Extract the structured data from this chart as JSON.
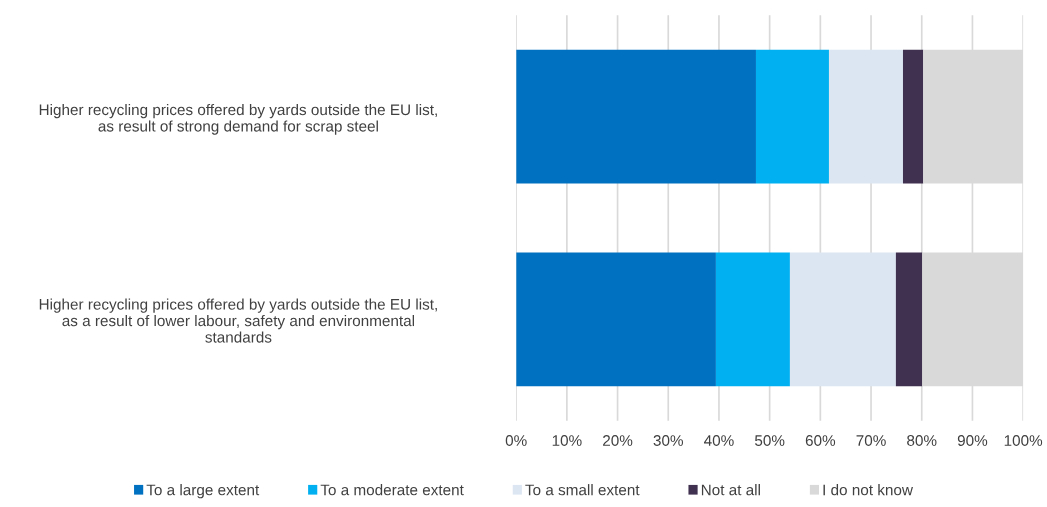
{
  "chart_data": {
    "type": "bar",
    "orientation": "horizontal",
    "stacked": true,
    "categories": [
      "Higher recycling prices offered by yards outside the EU list,\nas result of strong demand for scrap steel",
      "Higher recycling prices offered by yards outside the EU list,\nas a result of lower labour, safety and environmental\nstandards"
    ],
    "series": [
      {
        "name": "To a large extent",
        "color": "#0070c0",
        "values": [
          47.3,
          39.4
        ]
      },
      {
        "name": "To a moderate extent",
        "color": "#00b0f0",
        "values": [
          14.4,
          14.6
        ]
      },
      {
        "name": "To a small extent",
        "color": "#dce6f2",
        "values": [
          14.6,
          20.9
        ]
      },
      {
        "name": "Not at all",
        "color": "#403151",
        "values": [
          4.0,
          5.2
        ]
      },
      {
        "name": "I do not know",
        "color": "#d9d9d9",
        "values": [
          19.7,
          19.9
        ]
      }
    ],
    "xlim": [
      0,
      100
    ],
    "xticks": [
      {
        "value": 0,
        "label": "0%"
      },
      {
        "value": 10,
        "label": "10%"
      },
      {
        "value": 20,
        "label": "20%"
      },
      {
        "value": 30,
        "label": "30%"
      },
      {
        "value": 40,
        "label": "40%"
      },
      {
        "value": 50,
        "label": "50%"
      },
      {
        "value": 60,
        "label": "60%"
      },
      {
        "value": 70,
        "label": "70%"
      },
      {
        "value": 80,
        "label": "80%"
      },
      {
        "value": 90,
        "label": "90%"
      },
      {
        "value": 100,
        "label": "100%"
      }
    ],
    "grid": "x",
    "legend": "bottom"
  }
}
